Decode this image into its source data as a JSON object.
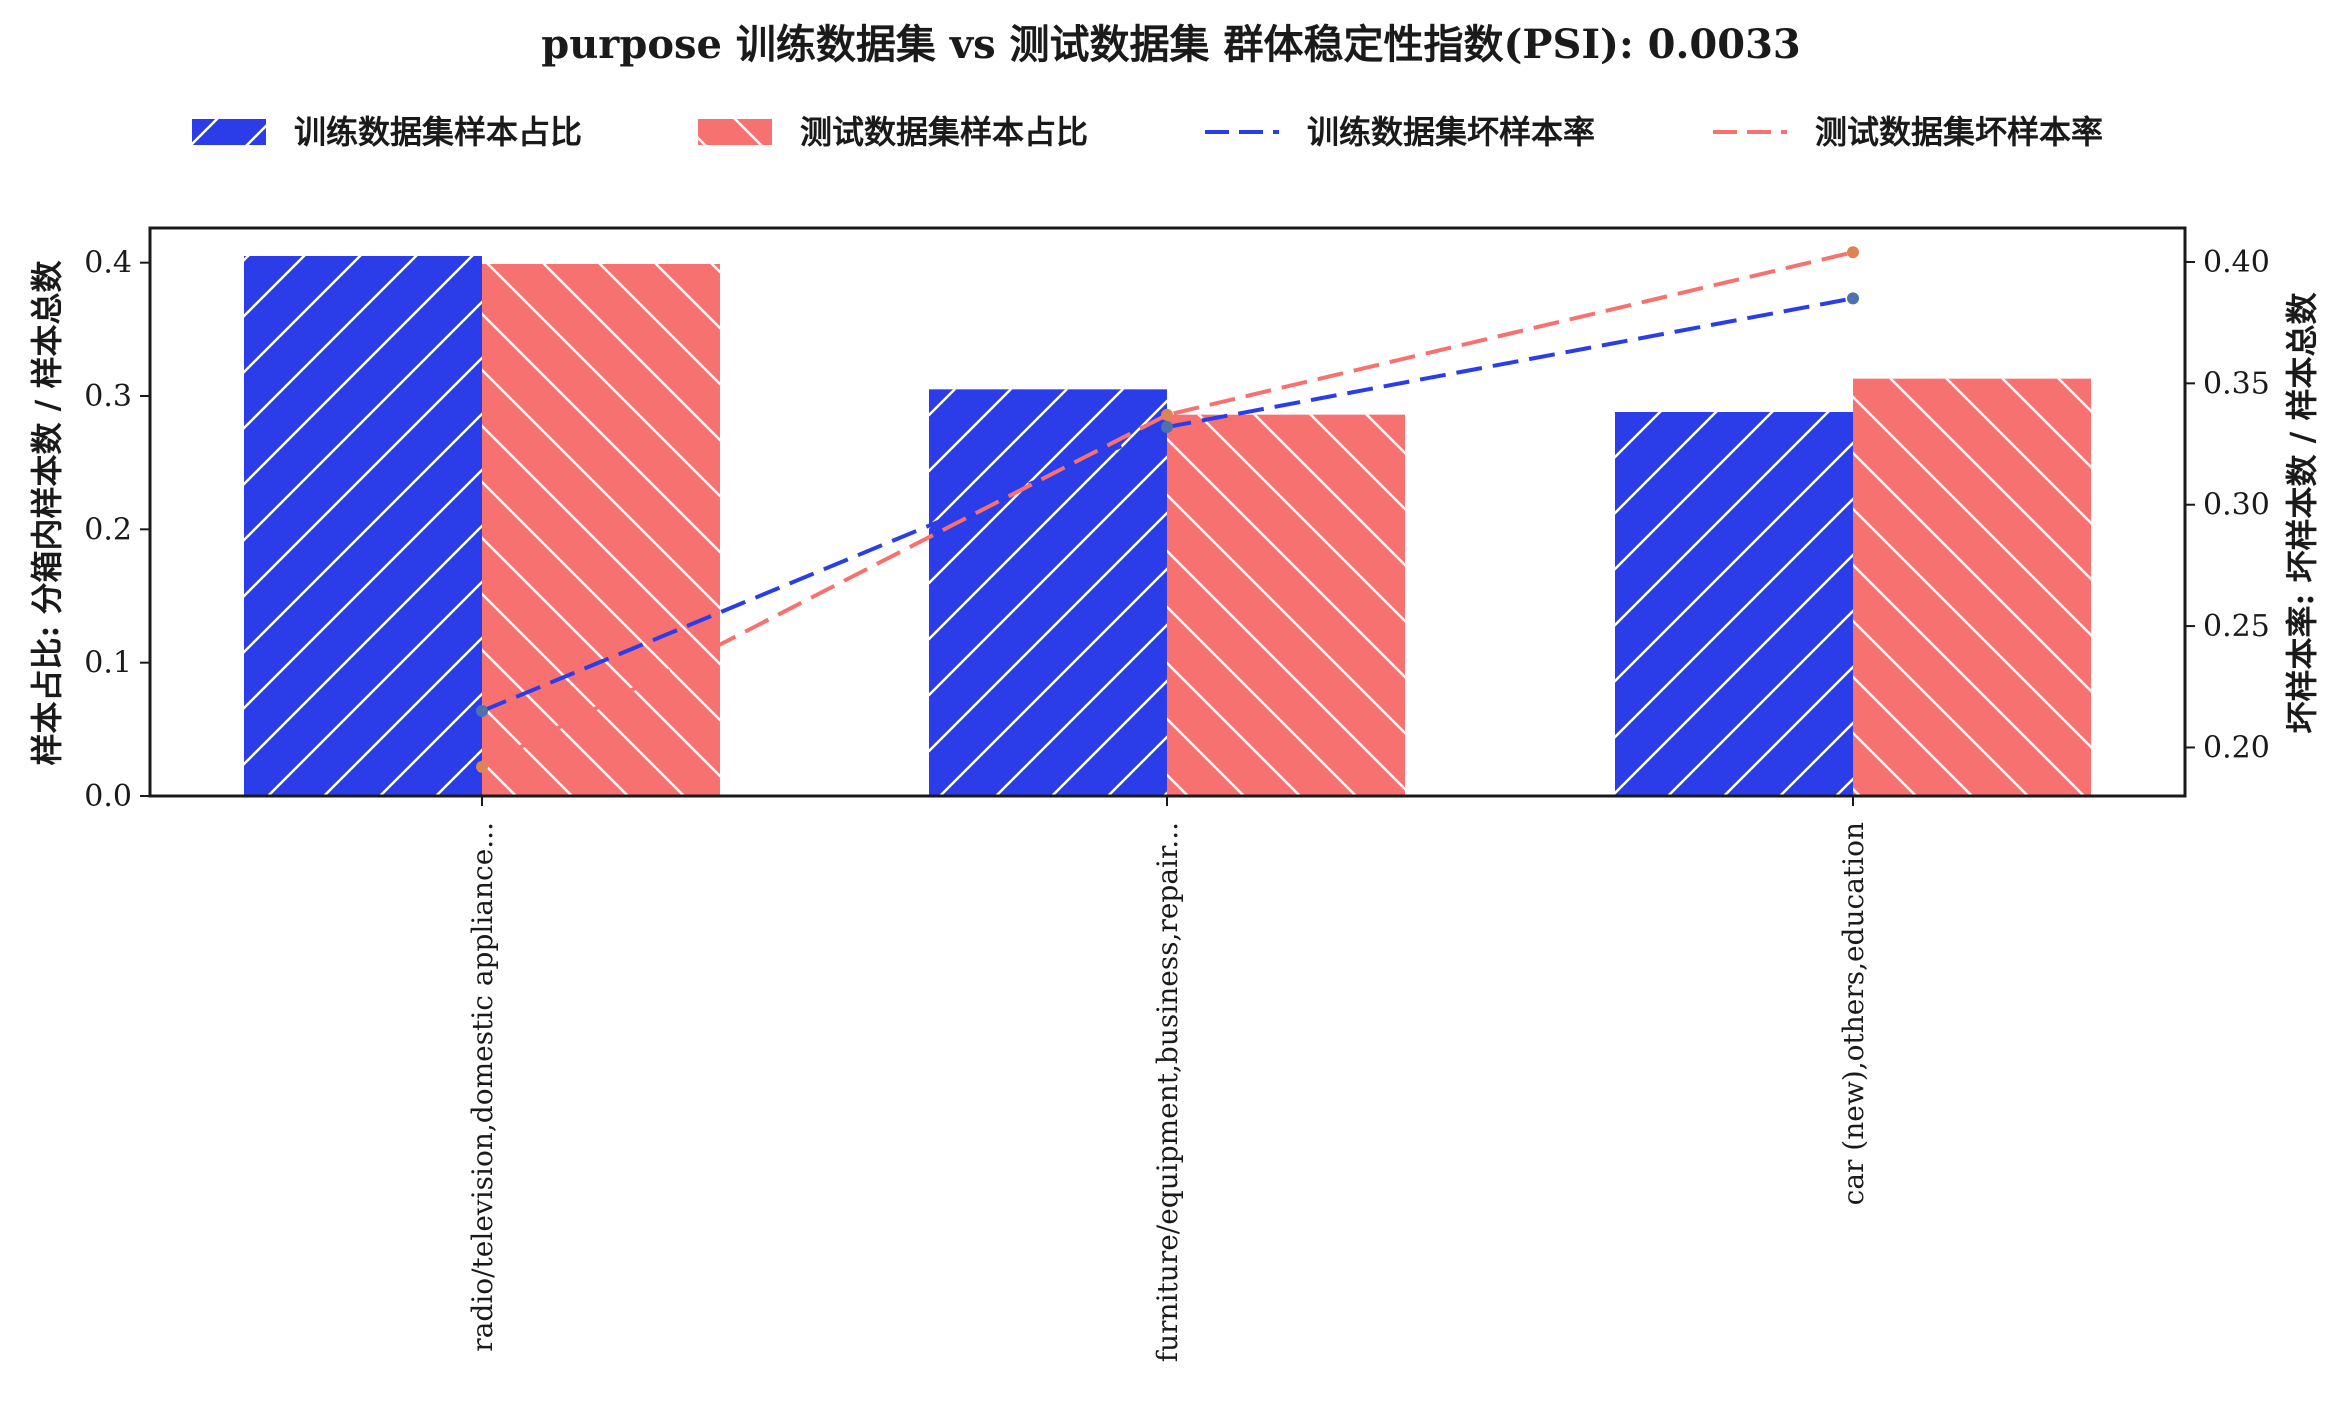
{
  "chart_data": {
    "type": "bar",
    "title": "purpose 训练数据集 vs 测试数据集 群体稳定性指数(PSI): 0.0033",
    "categories": [
      "radio/television,domestic appliance...",
      "furniture/equipment,business,repair...",
      "car (new),others,education"
    ],
    "series": [
      {
        "name": "训练数据集样本占比",
        "kind": "bar",
        "axis": "left",
        "values": [
          0.405,
          0.305,
          0.288
        ],
        "color": "#2a3de8",
        "hatch": "/"
      },
      {
        "name": "测试数据集样本占比",
        "kind": "bar",
        "axis": "left",
        "values": [
          0.399,
          0.286,
          0.313
        ],
        "color": "#f87171",
        "hatch": "\\"
      },
      {
        "name": "训练数据集坏样本率",
        "kind": "line",
        "axis": "right",
        "style": "dashed",
        "values": [
          0.215,
          0.332,
          0.385
        ],
        "color": "#2a3de8",
        "marker_color": "#4c72b0"
      },
      {
        "name": "测试数据集坏样本率",
        "kind": "line",
        "axis": "right",
        "style": "dashed",
        "values": [
          0.192,
          0.337,
          0.404
        ],
        "color": "#f87171",
        "marker_color": "#dd8452"
      }
    ],
    "ylabel": "样本占比: 分箱内样本数 / 样本总数",
    "ylabel_right": "坏样本率: 坏样本数 / 样本总数",
    "ylim": [
      0,
      0.426
    ],
    "ylim_right": [
      0.18,
      0.414
    ],
    "yticks": [
      "0.0",
      "0.1",
      "0.2",
      "0.3",
      "0.4"
    ],
    "yticks_right": [
      "0.20",
      "0.25",
      "0.30",
      "0.35",
      "0.40"
    ],
    "legend_position": "top",
    "grid": false
  }
}
